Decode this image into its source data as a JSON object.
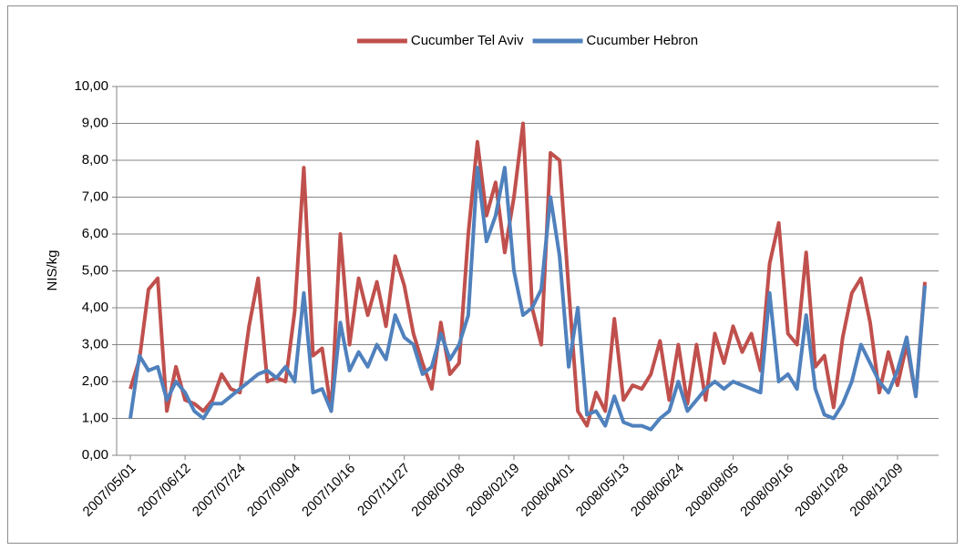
{
  "chart_data": {
    "type": "line",
    "y_label": "NIS/kg",
    "x": [
      "2007/05/01",
      "2007/05/08",
      "2007/05/15",
      "2007/05/22",
      "2007/05/29",
      "2007/06/05",
      "2007/06/12",
      "2007/06/19",
      "2007/06/26",
      "2007/07/03",
      "2007/07/10",
      "2007/07/17",
      "2007/07/24",
      "2007/07/31",
      "2007/08/07",
      "2007/08/14",
      "2007/08/21",
      "2007/08/28",
      "2007/09/04",
      "2007/09/11",
      "2007/09/18",
      "2007/09/25",
      "2007/10/02",
      "2007/10/09",
      "2007/10/16",
      "2007/10/23",
      "2007/10/30",
      "2007/11/06",
      "2007/11/13",
      "2007/11/20",
      "2007/11/27",
      "2007/12/04",
      "2007/12/11",
      "2007/12/18",
      "2007/12/25",
      "2008/01/01",
      "2008/01/08",
      "2008/01/15",
      "2008/01/22",
      "2008/01/29",
      "2008/02/05",
      "2008/02/12",
      "2008/02/19",
      "2008/02/26",
      "2008/03/04",
      "2008/03/11",
      "2008/03/18",
      "2008/03/25",
      "2008/04/01",
      "2008/04/08",
      "2008/04/15",
      "2008/04/22",
      "2008/04/29",
      "2008/05/06",
      "2008/05/13",
      "2008/05/20",
      "2008/05/27",
      "2008/06/03",
      "2008/06/10",
      "2008/06/17",
      "2008/06/24",
      "2008/07/01",
      "2008/07/08",
      "2008/07/15",
      "2008/07/22",
      "2008/07/29",
      "2008/08/05",
      "2008/08/12",
      "2008/08/19",
      "2008/08/26",
      "2008/09/02",
      "2008/09/09",
      "2008/09/16",
      "2008/09/23",
      "2008/09/30",
      "2008/10/07",
      "2008/10/14",
      "2008/10/21",
      "2008/10/28",
      "2008/11/04",
      "2008/11/11",
      "2008/11/18",
      "2008/11/25",
      "2008/12/02",
      "2008/12/09",
      "2008/12/16",
      "2008/12/23",
      "2008/12/30"
    ],
    "xlim": [
      "2007/05/01",
      "2008/12/30"
    ],
    "xticks": [
      "2007/05/01",
      "2007/06/12",
      "2007/07/24",
      "2007/09/04",
      "2007/10/16",
      "2007/11/27",
      "2008/01/08",
      "2008/02/19",
      "2008/04/01",
      "2008/05/13",
      "2008/06/24",
      "2008/08/05",
      "2008/09/16",
      "2008/10/28",
      "2008/12/09"
    ],
    "ylim": [
      0,
      10
    ],
    "yticks": [
      {
        "value": 0,
        "label": "0,00"
      },
      {
        "value": 1,
        "label": "1,00"
      },
      {
        "value": 2,
        "label": "2,00"
      },
      {
        "value": 3,
        "label": "3,00"
      },
      {
        "value": 4,
        "label": "4,00"
      },
      {
        "value": 5,
        "label": "5,00"
      },
      {
        "value": 6,
        "label": "6,00"
      },
      {
        "value": 7,
        "label": "7,00"
      },
      {
        "value": 8,
        "label": "8,00"
      },
      {
        "value": 9,
        "label": "9,00"
      },
      {
        "value": 10,
        "label": "10,00"
      }
    ],
    "grid": true,
    "legend": "top",
    "series": [
      {
        "name": "Cucumber Tel Aviv",
        "color": "#c0504d",
        "values": [
          1.8,
          2.6,
          4.5,
          4.8,
          1.2,
          2.4,
          1.5,
          1.4,
          1.2,
          1.5,
          2.2,
          1.8,
          1.7,
          3.5,
          4.8,
          2.0,
          2.1,
          2.0,
          3.9,
          7.8,
          2.7,
          2.9,
          1.2,
          6.0,
          3.0,
          4.8,
          3.8,
          4.7,
          3.5,
          5.4,
          4.6,
          3.3,
          2.5,
          1.8,
          3.6,
          2.2,
          2.5,
          6.0,
          8.5,
          6.5,
          7.4,
          5.5,
          7.0,
          9.0,
          4.0,
          3.0,
          8.2,
          8.0,
          4.5,
          1.2,
          0.8,
          1.7,
          1.2,
          3.7,
          1.5,
          1.9,
          1.8,
          2.2,
          3.1,
          1.5,
          3.0,
          1.4,
          3.0,
          1.5,
          3.3,
          2.5,
          3.5,
          2.8,
          3.3,
          2.3,
          5.2,
          6.3,
          3.3,
          3.0,
          5.5,
          2.4,
          2.7,
          1.3,
          3.2,
          4.4,
          4.8,
          3.6,
          1.7,
          2.8,
          1.9,
          3.0,
          1.6,
          4.7
        ]
      },
      {
        "name": "Cucumber Hebron",
        "color": "#4f81bd",
        "values": [
          1.0,
          2.7,
          2.3,
          2.4,
          1.5,
          2.0,
          1.7,
          1.2,
          1.0,
          1.4,
          1.4,
          1.6,
          1.8,
          2.0,
          2.2,
          2.3,
          2.1,
          2.4,
          2.0,
          4.4,
          1.7,
          1.8,
          1.2,
          3.6,
          2.3,
          2.8,
          2.4,
          3.0,
          2.6,
          3.8,
          3.2,
          3.0,
          2.2,
          2.4,
          3.3,
          2.6,
          3.0,
          3.8,
          7.8,
          5.8,
          6.5,
          7.8,
          5.0,
          3.8,
          4.0,
          4.5,
          7.0,
          5.4,
          2.4,
          4.0,
          1.1,
          1.2,
          0.8,
          1.6,
          0.9,
          0.8,
          0.8,
          0.7,
          1.0,
          1.2,
          2.0,
          1.2,
          1.5,
          1.8,
          2.0,
          1.8,
          2.0,
          1.9,
          1.8,
          1.7,
          4.4,
          2.0,
          2.2,
          1.8,
          3.8,
          1.8,
          1.1,
          1.0,
          1.4,
          2.0,
          3.0,
          2.5,
          2.0,
          1.7,
          2.3,
          3.2,
          1.6,
          4.6
        ]
      }
    ]
  }
}
